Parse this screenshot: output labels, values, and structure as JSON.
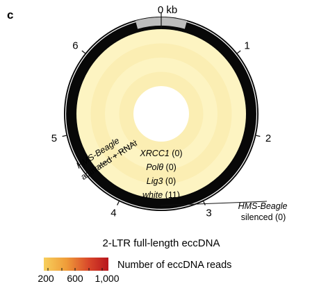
{
  "panel_label": "c",
  "chart_data": {
    "type": "heatmap",
    "layout": "circular",
    "title": "2-LTR full-length eccDNA",
    "position_axis": {
      "unit_label": "0 kb",
      "tick_labels": [
        "1",
        "2",
        "3",
        "4",
        "5",
        "6"
      ]
    },
    "rings": [
      {
        "gene": "XRCC1",
        "count": "(0)",
        "reads": 0
      },
      {
        "gene": "Polθ",
        "count": "(0)",
        "reads": 0
      },
      {
        "gene": "Lig3",
        "count": "(0)",
        "reads": 0
      },
      {
        "gene": "white",
        "count": "(11)",
        "reads": 11
      }
    ],
    "annotations": {
      "activated_line1": "HMS-Beagle",
      "activated_line2": "activated + RNAi",
      "silenced_line1": "HMS-Beagle",
      "silenced_line2": "silenced (0)"
    },
    "colorbar": {
      "label": "Number of eccDNA reads",
      "tick_labels": [
        "200",
        "600",
        "1,000"
      ],
      "range": [
        200,
        1000
      ],
      "color_low": "#f6c654",
      "color_high": "#c0191f"
    },
    "colors": {
      "track_outer": "#080808",
      "gray_marker": "#bdbdbd",
      "ring_fill_a": "#fdf4c2",
      "ring_fill_b": "#fbeeb3"
    }
  }
}
